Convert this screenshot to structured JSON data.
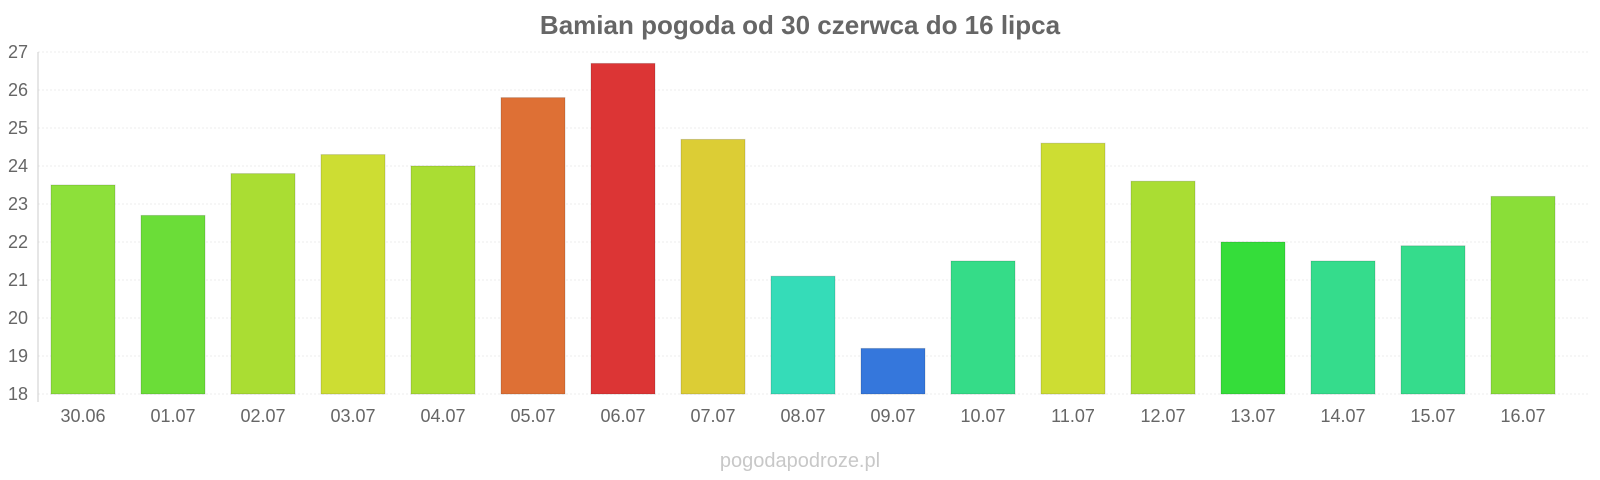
{
  "title": "Bamian pogoda od 30 czerwca do 16 lipca",
  "watermark": "pogodapodroze.pl",
  "chart_data": {
    "type": "bar",
    "title": "Bamian pogoda od 30 czerwca do 16 lipca",
    "xlabel": "",
    "ylabel": "",
    "ylim": [
      18,
      27
    ],
    "y_ticks": [
      "18",
      "19",
      "20",
      "21",
      "22",
      "23",
      "24",
      "25",
      "26",
      "27"
    ],
    "grid": true,
    "legend": "none",
    "categories": [
      "30.06",
      "01.07",
      "02.07",
      "03.07",
      "04.07",
      "05.07",
      "06.07",
      "07.07",
      "08.07",
      "09.07",
      "10.07",
      "11.07",
      "12.07",
      "13.07",
      "14.07",
      "15.07",
      "16.07"
    ],
    "values": [
      23.5,
      22.7,
      23.8,
      24.3,
      24.0,
      25.8,
      26.7,
      24.7,
      21.1,
      19.2,
      21.5,
      24.6,
      23.6,
      22.0,
      21.5,
      21.9,
      23.2
    ],
    "colors": [
      "#8de03a",
      "#6bdd38",
      "#aadd33",
      "#cddd33",
      "#aadd33",
      "#de7035",
      "#dc3535",
      "#dccd35",
      "#35dcb8",
      "#3577dc",
      "#35dc88",
      "#cddd33",
      "#aadd33",
      "#35dd3a",
      "#35dc8c",
      "#35dc8c",
      "#8ade38"
    ]
  }
}
